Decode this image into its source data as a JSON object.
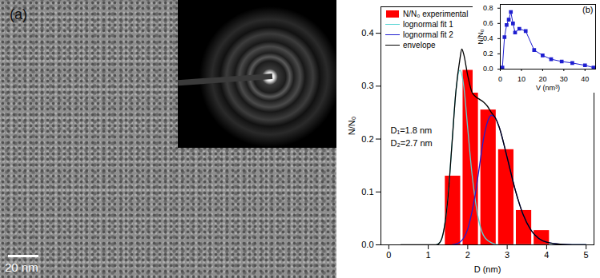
{
  "image_panel": {
    "label": "(a)",
    "scale_bar": "20 nm"
  },
  "chart_data": [
    {
      "type": "histogram",
      "xlabel": "D (nm)",
      "ylabel": "N/N₀",
      "name": "N/N₀ experimental",
      "color": "#ff0000",
      "bins": [
        1.4,
        1.85,
        2.3,
        2.75,
        3.2,
        3.65,
        4.1
      ],
      "values": [
        0.13,
        0.33,
        0.255,
        0.18,
        0.065,
        0.027
      ],
      "xlim": [
        -0.2,
        5.2
      ],
      "xticks": [
        0,
        1,
        2,
        3,
        4,
        5
      ],
      "ylim": [
        0,
        0.45
      ],
      "yticks": [
        {
          "value": 0,
          "label": "0.0"
        },
        {
          "value": 0.1,
          "label": "0.1"
        },
        {
          "value": 0.2,
          "label": "0.2"
        },
        {
          "value": 0.3,
          "label": "0.3"
        },
        {
          "value": 0.4,
          "label": "0.4"
        }
      ],
      "legend": "upper left",
      "annotations": [
        "D₁=1.8 nm",
        "D₂=2.7 nm"
      ],
      "series": [
        {
          "name": "lognormal fit 1",
          "type": "line",
          "color": "#5ad5d5",
          "x": [
            1.2,
            1.3,
            1.4,
            1.5,
            1.6,
            1.7,
            1.8,
            1.9,
            2.0,
            2.1,
            2.2,
            2.3,
            2.4,
            2.6,
            2.8,
            5.0
          ],
          "values": [
            0,
            0.005,
            0.03,
            0.09,
            0.19,
            0.29,
            0.33,
            0.3,
            0.22,
            0.14,
            0.08,
            0.04,
            0.018,
            0.004,
            0,
            0
          ]
        },
        {
          "name": "lognormal fit 2",
          "type": "line",
          "color": "#1f1fd0",
          "x": [
            1.6,
            1.8,
            2.0,
            2.1,
            2.2,
            2.3,
            2.4,
            2.5,
            2.6,
            2.7,
            2.8,
            3.0,
            3.2,
            3.4,
            3.6,
            3.8,
            4.0,
            4.4,
            5.0
          ],
          "values": [
            0,
            0.005,
            0.03,
            0.06,
            0.1,
            0.15,
            0.2,
            0.232,
            0.245,
            0.24,
            0.222,
            0.165,
            0.105,
            0.058,
            0.028,
            0.012,
            0.005,
            0.001,
            0
          ]
        },
        {
          "name": "envelope",
          "type": "line",
          "color": "#000000",
          "x": [
            0.3,
            1.2,
            1.3,
            1.4,
            1.5,
            1.6,
            1.7,
            1.8,
            1.85,
            1.9,
            2.0,
            2.1,
            2.2,
            2.3,
            2.4,
            2.5,
            2.6,
            2.7,
            2.8,
            3.0,
            3.2,
            3.4,
            3.6,
            3.8,
            4.0,
            4.4,
            5.0
          ],
          "values": [
            0,
            0,
            0.005,
            0.03,
            0.09,
            0.19,
            0.29,
            0.35,
            0.37,
            0.36,
            0.32,
            0.29,
            0.28,
            0.275,
            0.27,
            0.262,
            0.25,
            0.24,
            0.222,
            0.165,
            0.105,
            0.058,
            0.028,
            0.012,
            0.005,
            0.001,
            0
          ]
        }
      ]
    },
    {
      "type": "line",
      "title": "(b)",
      "xlabel": "V (nm³)",
      "ylabel": "N/N₀",
      "color": "#1f1fd0",
      "marker": "square",
      "x": [
        1,
        2,
        3,
        4,
        5,
        6,
        7,
        9,
        12,
        16,
        20,
        24,
        29,
        34,
        40,
        44
      ],
      "values": [
        0.02,
        0.42,
        0.58,
        0.65,
        0.75,
        0.6,
        0.48,
        0.53,
        0.5,
        0.25,
        0.18,
        0.13,
        0.1,
        0.08,
        0.05,
        0.02
      ],
      "xlim": [
        0,
        45
      ],
      "xticks": [
        0,
        10,
        20,
        30,
        40
      ],
      "ylim": [
        0,
        0.85
      ],
      "yticks": [
        {
          "value": 0,
          "label": "0.0"
        },
        {
          "value": 0.2,
          "label": "0.2"
        },
        {
          "value": 0.4,
          "label": "0.4"
        },
        {
          "value": 0.6,
          "label": "0.6"
        },
        {
          "value": 0.8,
          "label": "0.8"
        }
      ]
    }
  ]
}
